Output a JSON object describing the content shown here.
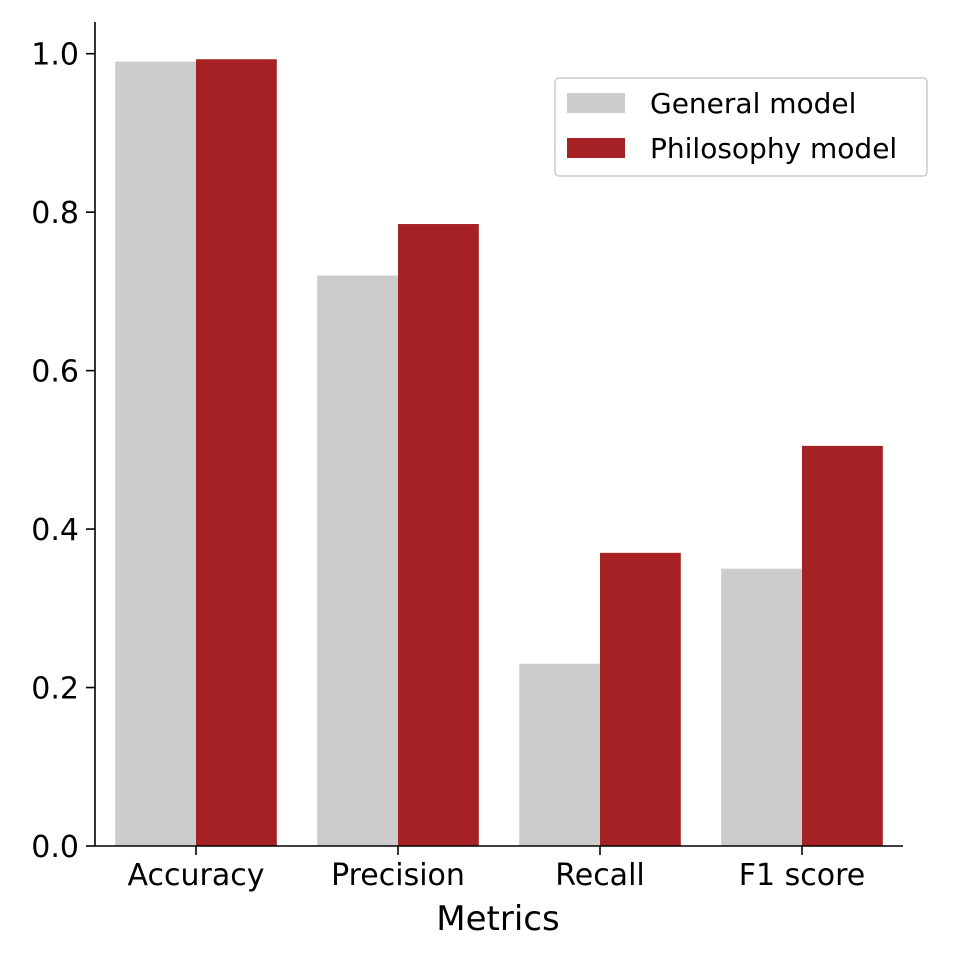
{
  "chart_data": {
    "type": "bar",
    "title": "",
    "xlabel": "Metrics",
    "ylabel": "",
    "categories": [
      "Accuracy",
      "Precision",
      "Recall",
      "F1 score"
    ],
    "series": [
      {
        "name": "General model",
        "values": [
          0.99,
          0.72,
          0.23,
          0.35
        ],
        "color": "#cccccc"
      },
      {
        "name": "Philosophy model",
        "values": [
          0.993,
          0.785,
          0.37,
          0.505
        ],
        "color": "#a52123"
      }
    ],
    "ylim": [
      0,
      1.04
    ],
    "yticks": [
      0.0,
      0.2,
      0.4,
      0.6,
      0.8,
      1.0
    ],
    "ytick_labels": [
      "0.0",
      "0.2",
      "0.4",
      "0.6",
      "0.8",
      "1.0"
    ],
    "grid": false,
    "legend_position": "top-right"
  }
}
